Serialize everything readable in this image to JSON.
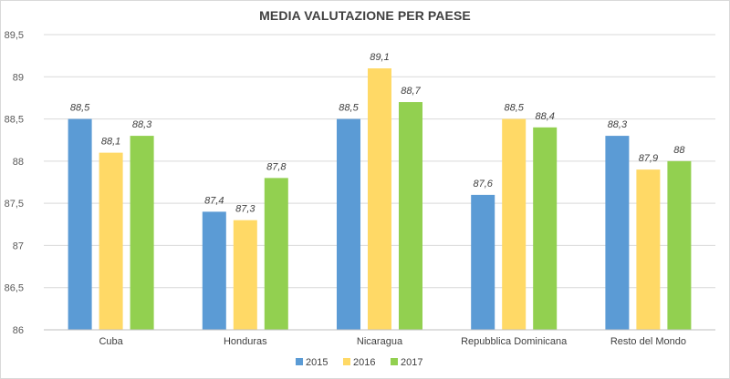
{
  "chart_data": {
    "type": "bar",
    "title": "MEDIA VALUTAZIONE PER PAESE",
    "xlabel": "",
    "ylabel": "",
    "categories": [
      "Cuba",
      "Honduras",
      "Nicaragua",
      "Repubblica Dominicana",
      "Resto del Mondo"
    ],
    "series": [
      {
        "name": "2015",
        "color": "#5b9bd5",
        "values": [
          88.5,
          87.4,
          88.5,
          87.6,
          88.3
        ],
        "labels": [
          "88,5",
          "87,4",
          "88,5",
          "87,6",
          "88,3"
        ]
      },
      {
        "name": "2016",
        "color": "#ffd966",
        "values": [
          88.1,
          87.3,
          89.1,
          88.5,
          87.9
        ],
        "labels": [
          "88,1",
          "87,3",
          "89,1",
          "88,5",
          "87,9"
        ]
      },
      {
        "name": "2017",
        "color": "#92d050",
        "values": [
          88.3,
          87.8,
          88.7,
          88.4,
          88.0
        ],
        "labels": [
          "88,3",
          "87,8",
          "88,7",
          "88,4",
          "88"
        ]
      }
    ],
    "ylim": [
      86,
      89.5
    ],
    "yticks": [
      86,
      86.5,
      87,
      87.5,
      88,
      88.5,
      89,
      89.5
    ],
    "ytick_labels": [
      "86",
      "86,5",
      "87",
      "87,5",
      "88",
      "88,5",
      "89",
      "89,5"
    ],
    "grid": true,
    "legend": "bottom-center"
  }
}
